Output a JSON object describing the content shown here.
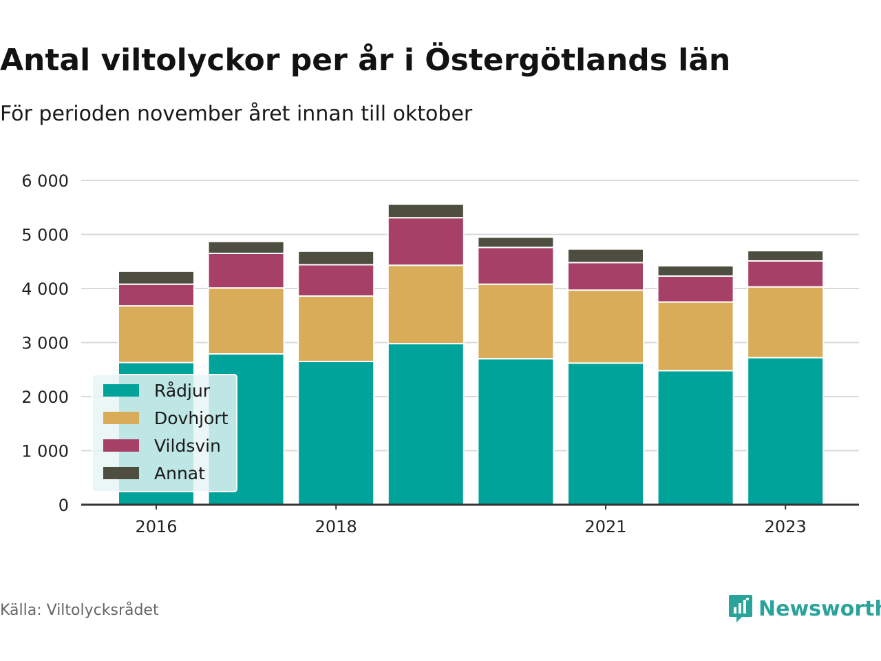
{
  "title": "Antal viltolyckor per år i Östergötlands län",
  "subtitle": "För perioden november året innan till oktober",
  "source": "Källa: Viltolycksrådet",
  "brand": {
    "name": "Newsworthy",
    "color": "#2aa39a",
    "icon": "newsworthy-logo-icon"
  },
  "chart_data": {
    "type": "bar",
    "stacked": true,
    "categories": [
      "2016",
      "2017",
      "2018",
      "2019",
      "2020",
      "2021",
      "2022",
      "2023"
    ],
    "x_tick_labels": [
      "2016",
      "",
      "2018",
      "",
      "",
      "2021",
      "",
      "2023"
    ],
    "series": [
      {
        "name": "Rådjur",
        "color": "#00a39a",
        "values": [
          2630,
          2790,
          2650,
          2980,
          2700,
          2620,
          2480,
          2720
        ]
      },
      {
        "name": "Dovhjort",
        "color": "#d9ac5a",
        "values": [
          1050,
          1220,
          1210,
          1450,
          1380,
          1350,
          1270,
          1310
        ]
      },
      {
        "name": "Vildsvin",
        "color": "#a64066",
        "values": [
          400,
          640,
          580,
          880,
          680,
          510,
          480,
          480
        ]
      },
      {
        "name": "Annat",
        "color": "#4d4d40",
        "values": [
          240,
          220,
          250,
          250,
          190,
          250,
          190,
          190
        ]
      }
    ],
    "ylim": [
      0,
      6000
    ],
    "y_ticks": [
      0,
      1000,
      2000,
      3000,
      4000,
      5000,
      6000
    ],
    "y_tick_labels": [
      "0",
      "1 000",
      "2 000",
      "3 000",
      "4 000",
      "5 000",
      "6 000"
    ],
    "grid": true,
    "legend": "bottom-left",
    "xlabel": "",
    "ylabel": ""
  }
}
